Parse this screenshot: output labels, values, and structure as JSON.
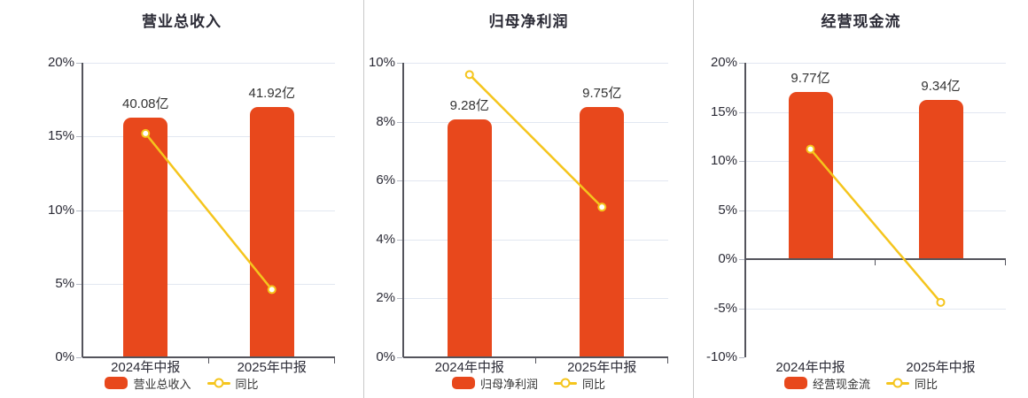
{
  "colors": {
    "bar": "#e8481c",
    "line": "#f5c51d",
    "marker_fill": "#ffffff",
    "axis": "#54545c",
    "grid": "#e2e7f1",
    "tick": "#b4b9c4",
    "text": "#2b2b36",
    "value_label": "#333333",
    "divider": "#c9c9c9",
    "background": "#ffffff"
  },
  "chart_data": [
    {
      "type": "bar",
      "title": "营业总收入",
      "categories": [
        "2024年中报",
        "2025年中报"
      ],
      "series": [
        {
          "type": "bar",
          "name": "营业总收入",
          "unit": "亿",
          "values": [
            40.08,
            41.92
          ],
          "labels": [
            "40.08亿",
            "41.92亿"
          ]
        },
        {
          "type": "line",
          "name": "同比",
          "unit": "%",
          "values": [
            15.2,
            4.6
          ]
        }
      ],
      "y_axis": {
        "min": 0,
        "max": 20,
        "tick_step": 5,
        "tick_labels": [
          "0%",
          "5%",
          "10%",
          "15%",
          "20%"
        ]
      },
      "bar_axis_pct": [
        16.25,
        17.0
      ],
      "legend": [
        "营业总收入",
        "同比"
      ],
      "legend_position": "bottom",
      "grid": true
    },
    {
      "type": "bar",
      "title": "归母净利润",
      "categories": [
        "2024年中报",
        "2025年中报"
      ],
      "series": [
        {
          "type": "bar",
          "name": "归母净利润",
          "unit": "亿",
          "values": [
            9.28,
            9.75
          ],
          "labels": [
            "9.28亿",
            "9.75亿"
          ]
        },
        {
          "type": "line",
          "name": "同比",
          "unit": "%",
          "values": [
            9.6,
            5.1
          ]
        }
      ],
      "y_axis": {
        "min": 0,
        "max": 10,
        "tick_step": 2,
        "tick_labels": [
          "0%",
          "2%",
          "4%",
          "6%",
          "8%",
          "10%"
        ]
      },
      "bar_axis_pct": [
        8.08,
        8.5
      ],
      "legend": [
        "归母净利润",
        "同比"
      ],
      "legend_position": "bottom",
      "grid": true
    },
    {
      "type": "bar",
      "title": "经营现金流",
      "categories": [
        "2024年中报",
        "2025年中报"
      ],
      "series": [
        {
          "type": "bar",
          "name": "经营现金流",
          "unit": "亿",
          "values": [
            9.77,
            9.34
          ],
          "labels": [
            "9.77亿",
            "9.34亿"
          ]
        },
        {
          "type": "line",
          "name": "同比",
          "unit": "%",
          "values": [
            11.2,
            -4.4
          ]
        }
      ],
      "y_axis": {
        "min": -10,
        "max": 20,
        "tick_step": 5,
        "tick_labels": [
          "-10%",
          "-5%",
          "0%",
          "5%",
          "10%",
          "15%",
          "20%"
        ]
      },
      "bar_axis_pct": [
        17.0,
        16.2
      ],
      "legend": [
        "经营现金流",
        "同比"
      ],
      "legend_position": "bottom",
      "grid": true
    }
  ]
}
